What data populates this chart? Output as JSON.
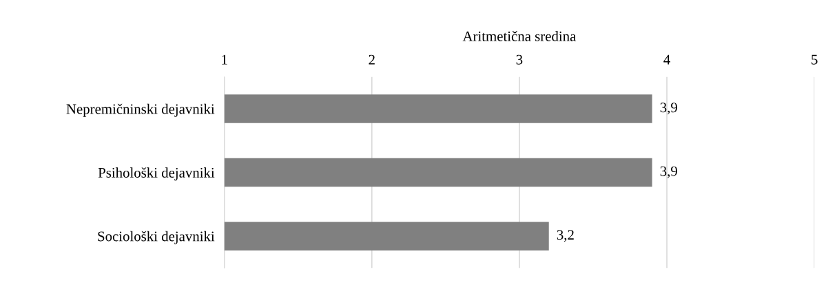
{
  "chart_data": {
    "type": "bar",
    "orientation": "horizontal",
    "xlabel": "Aritmetična sredina",
    "categories": [
      "Nepremičninski dejavniki",
      "Psihološki dejavniki",
      "Sociološki dejavniki"
    ],
    "values": [
      3.9,
      3.9,
      3.2
    ],
    "color": "#808080",
    "value_labels": [
      "3,9",
      "3,9",
      "3,2"
    ],
    "xlim": [
      1,
      5
    ],
    "xticks": [
      1,
      2,
      3,
      4,
      5
    ],
    "grid": "x"
  }
}
